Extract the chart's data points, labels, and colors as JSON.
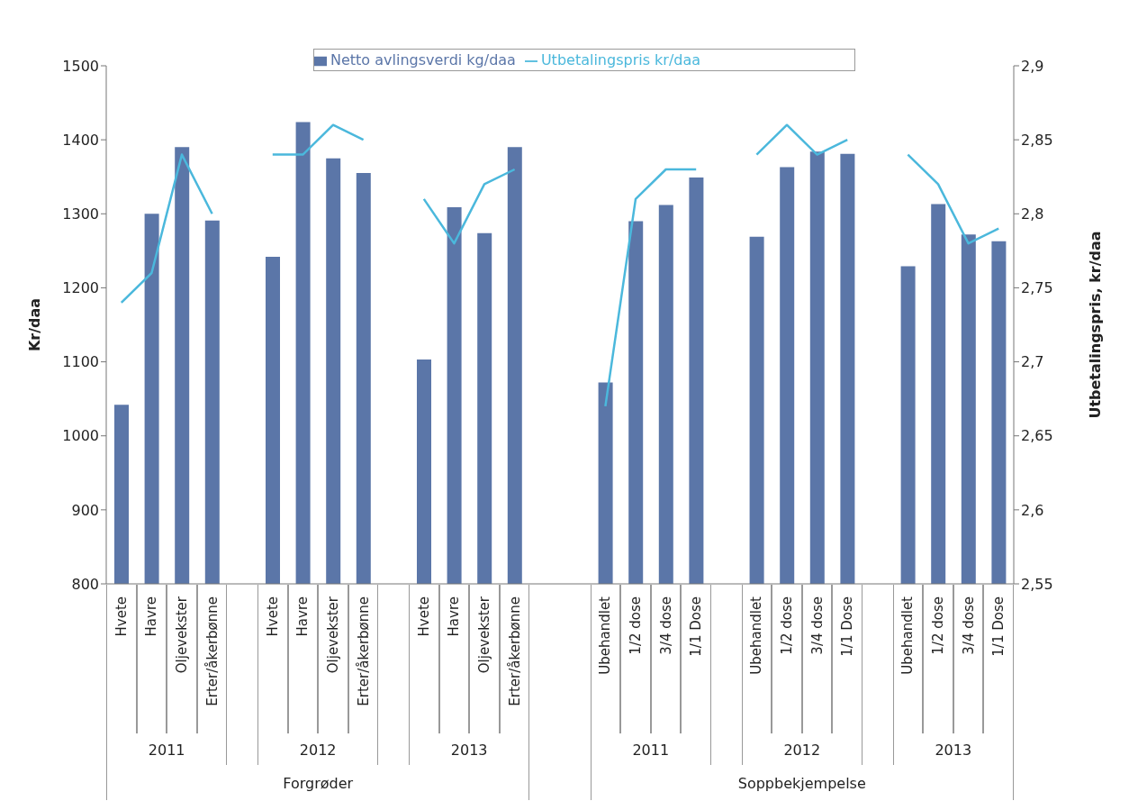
{
  "chart_data": {
    "type": "bar",
    "categories": [
      "Hvete",
      "Havre",
      "Oljevekster",
      "Erter/åkerbønne",
      null,
      "Hvete",
      "Havre",
      "Oljevekster",
      "Erter/åkerbønne",
      null,
      "Hvete",
      "Havre",
      "Oljevekster",
      "Erter/åkerbønne",
      null,
      null,
      "Ubehandlet",
      "1/2 dose",
      "3/4 dose",
      "1/1 Dose",
      null,
      "Ubehandlet",
      "1/2 dose",
      "3/4 dose",
      "1/1 Dose",
      null,
      "Ubehandlet",
      "1/2 dose",
      "3/4 dose",
      "1/1 Dose"
    ],
    "series": [
      {
        "name": "Netto avlingsverdi kg/daa",
        "color": "#5b76a8",
        "values": [
          1042,
          1300,
          1390,
          1291,
          null,
          1242,
          1424,
          1375,
          1355,
          null,
          1103,
          1309,
          1274,
          1390,
          null,
          null,
          1072,
          1290,
          1312,
          1349,
          null,
          1269,
          1363,
          1384,
          1381,
          null,
          1229,
          1313,
          1272,
          1263
        ]
      },
      {
        "name": "Utbetalingspris kr/daa",
        "type": "line",
        "axis": "y2",
        "color": "#4bb8dc",
        "values": [
          2.74,
          2.76,
          2.84,
          2.8,
          null,
          2.84,
          2.84,
          2.86,
          2.85,
          null,
          2.81,
          2.78,
          2.82,
          2.83,
          null,
          null,
          2.67,
          2.81,
          2.83,
          2.83,
          null,
          2.84,
          2.86,
          2.84,
          2.85,
          null,
          2.84,
          2.82,
          2.78,
          2.79
        ]
      }
    ],
    "ylabel": "Kr/daa",
    "y2label": "Utbetalingspris, kr/daa",
    "ylim": [
      800,
      1500
    ],
    "yticks": [
      800,
      900,
      1000,
      1100,
      1200,
      1300,
      1400,
      1500
    ],
    "y2lim": [
      2.55,
      2.9
    ],
    "y2ticks": [
      {
        "value": 2.55,
        "label": "2,55"
      },
      {
        "value": 2.6,
        "label": "2,6"
      },
      {
        "value": 2.65,
        "label": "2,65"
      },
      {
        "value": 2.7,
        "label": "2,7"
      },
      {
        "value": 2.75,
        "label": "2,75"
      },
      {
        "value": 2.8,
        "label": "2,8"
      },
      {
        "value": 2.85,
        "label": "2,85"
      },
      {
        "value": 2.9,
        "label": "2,9"
      }
    ],
    "annotations": [
      "2011",
      "2012",
      "2013",
      "2011",
      "2012",
      "2013",
      "Forgrøder",
      "Soppbekjempelse"
    ],
    "legend": "top",
    "marker": "none",
    "grid": false
  }
}
